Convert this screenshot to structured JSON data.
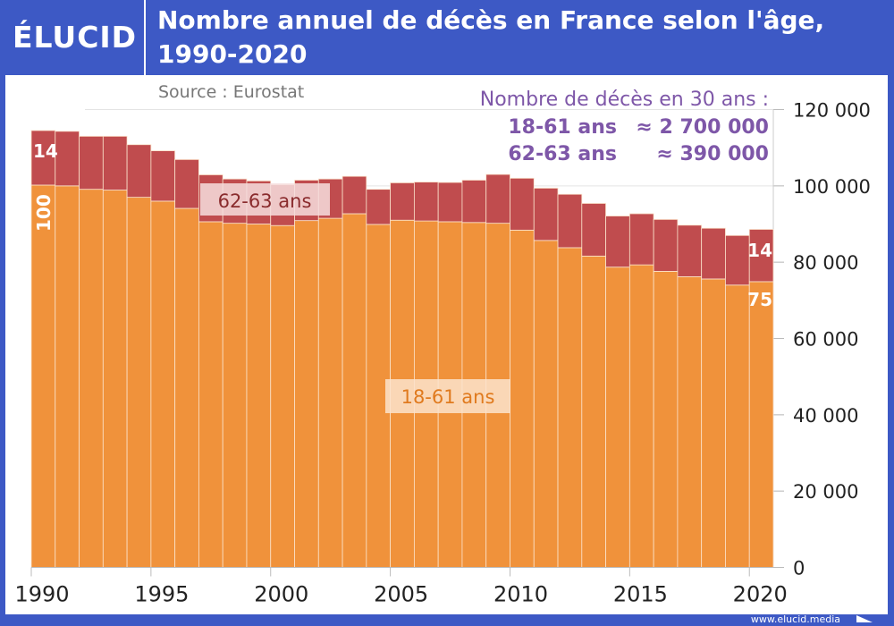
{
  "header": {
    "logo": "ÉLUCID",
    "title_line1": "Nombre annuel de décès en France selon l'âge,",
    "title_line2": "1990-2020"
  },
  "footer": {
    "url": "www.elucid.media"
  },
  "chart_data": {
    "type": "bar",
    "stacked": true,
    "title": "Nombre annuel de décès en France selon l'âge, 1990-2020",
    "source": "Source : Eurostat",
    "x": [
      1990,
      1991,
      1992,
      1993,
      1994,
      1995,
      1996,
      1997,
      1998,
      1999,
      2000,
      2001,
      2002,
      2003,
      2004,
      2005,
      2006,
      2007,
      2008,
      2009,
      2010,
      2011,
      2012,
      2013,
      2014,
      2015,
      2016,
      2017,
      2018,
      2019,
      2020
    ],
    "x_ticks": [
      "1990",
      "1995",
      "2000",
      "2005",
      "2010",
      "2015",
      "2020"
    ],
    "y_ticks": [
      "0",
      "20 000",
      "40 000",
      "60 000",
      "80 000",
      "100 000",
      "120 000"
    ],
    "ylim": [
      0,
      120000
    ],
    "grid": true,
    "y_axis_side": "right",
    "series": [
      {
        "name": "18-61 ans",
        "color": "#f0923b",
        "values": [
          100200,
          100000,
          99100,
          98900,
          97000,
          96000,
          94100,
          90600,
          90200,
          90000,
          89600,
          90900,
          91500,
          92700,
          89900,
          91000,
          90800,
          90600,
          90400,
          90200,
          88400,
          85700,
          83800,
          81600,
          78700,
          79300,
          77600,
          76200,
          75600,
          74000,
          74900
        ]
      },
      {
        "name": "62-63 ans",
        "color": "#c04c4e",
        "values": [
          14300,
          14300,
          13900,
          14100,
          13800,
          13200,
          12800,
          12300,
          11600,
          11300,
          10700,
          10600,
          10300,
          9800,
          9200,
          9800,
          10200,
          10300,
          11100,
          12800,
          13600,
          13700,
          14000,
          13800,
          13400,
          13400,
          13600,
          13500,
          13300,
          13000,
          13700
        ]
      }
    ],
    "annotations": {
      "start_orange": "100",
      "start_red": "14",
      "end_orange": "75",
      "end_red": "14",
      "label_orange": "18-61 ans",
      "label_red": "62-63 ans",
      "summary_title": "Nombre de décès en 30 ans :",
      "summary_1_label": "18-61 ans",
      "summary_1_value": "≈ 2 700 000",
      "summary_2_label": "62-63 ans",
      "summary_2_value": "≈    390 000"
    },
    "colors": {
      "summary": "#7e57a8",
      "frame": "#3d59c5"
    }
  }
}
